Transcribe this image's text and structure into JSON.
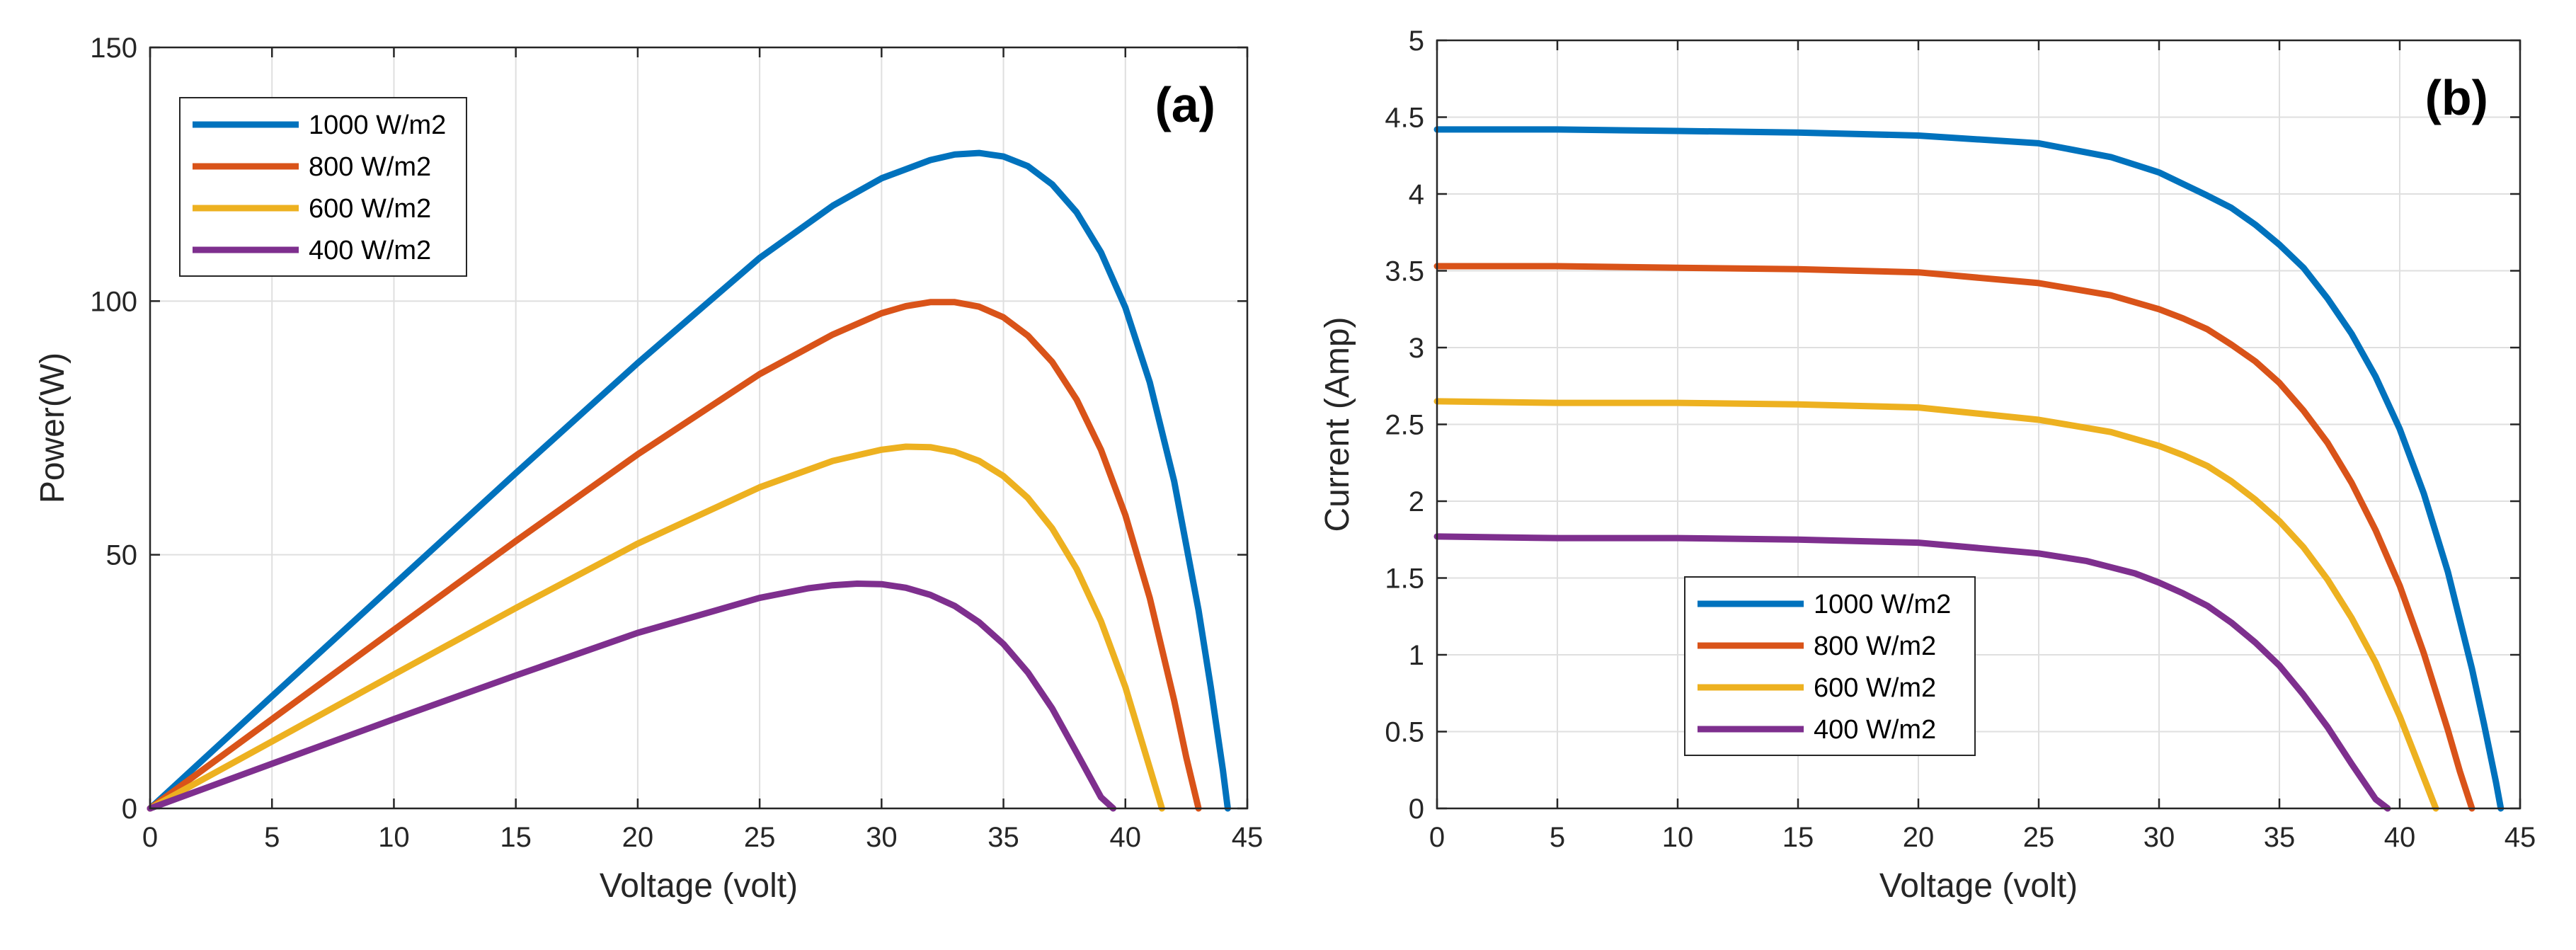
{
  "chart_data": [
    {
      "type": "line",
      "panel_label": "(a)",
      "xlabel": "Voltage (volt)",
      "ylabel": "Power(W)",
      "xlim": [
        0,
        45
      ],
      "ylim": [
        0,
        150
      ],
      "xticks": [
        0,
        5,
        10,
        15,
        20,
        25,
        30,
        35,
        40,
        45
      ],
      "yticks": [
        0,
        50,
        100,
        150
      ],
      "grid": true,
      "legend_position": "top-left",
      "series": [
        {
          "name": "1000 W/m2",
          "color": "#0072BD",
          "x": [
            0,
            5,
            10,
            15,
            20,
            25,
            28,
            30,
            32,
            33,
            34,
            35,
            36,
            37,
            38,
            39,
            40,
            41,
            42,
            43,
            43.5,
            44,
            44.2
          ],
          "y": [
            0,
            22.1,
            44.1,
            66.1,
            87.8,
            108.5,
            118.8,
            124.2,
            127.8,
            128.9,
            129.2,
            128.5,
            126.6,
            123.0,
            117.5,
            109.6,
            98.7,
            84.0,
            64.5,
            39.1,
            24.0,
            7.5,
            0
          ]
        },
        {
          "name": "800 W/m2",
          "color": "#D95319",
          "x": [
            0,
            5,
            10,
            15,
            20,
            25,
            28,
            30,
            31,
            32,
            33,
            34,
            35,
            36,
            37,
            38,
            39,
            40,
            41,
            42,
            42.5,
            43
          ],
          "y": [
            0,
            17.6,
            35.2,
            52.7,
            69.8,
            85.6,
            93.4,
            97.6,
            99.0,
            99.8,
            99.8,
            98.9,
            96.8,
            93.2,
            88.0,
            80.6,
            70.7,
            57.8,
            41.5,
            21.3,
            10.0,
            0
          ]
        },
        {
          "name": "600 W/m2",
          "color": "#EDB120",
          "x": [
            0,
            5,
            10,
            15,
            20,
            25,
            28,
            30,
            31,
            32,
            33,
            34,
            35,
            36,
            37,
            38,
            39,
            40,
            41,
            41.5
          ],
          "y": [
            0,
            13.2,
            26.4,
            39.5,
            52.2,
            63.3,
            68.5,
            70.7,
            71.3,
            71.2,
            70.3,
            68.5,
            65.5,
            61.2,
            55.2,
            47.2,
            36.9,
            23.9,
            8.0,
            0
          ]
        },
        {
          "name": "400 W/m2",
          "color": "#7E2F8E",
          "x": [
            0,
            5,
            10,
            15,
            20,
            25,
            27,
            28,
            29,
            30,
            31,
            32,
            33,
            34,
            35,
            36,
            37,
            38,
            39,
            39.5
          ],
          "y": [
            0,
            8.8,
            17.6,
            26.2,
            34.6,
            41.5,
            43.4,
            44.0,
            44.3,
            44.2,
            43.5,
            42.1,
            39.9,
            36.7,
            32.4,
            26.8,
            19.7,
            11.0,
            2.2,
            0
          ]
        }
      ]
    },
    {
      "type": "line",
      "panel_label": "(b)",
      "xlabel": "Voltage (volt)",
      "ylabel": "Current (Amp)",
      "xlim": [
        0,
        45
      ],
      "ylim": [
        0,
        5
      ],
      "xticks": [
        0,
        5,
        10,
        15,
        20,
        25,
        30,
        35,
        40,
        45
      ],
      "yticks": [
        0,
        0.5,
        1,
        1.5,
        2,
        2.5,
        3,
        3.5,
        4,
        4.5,
        5
      ],
      "grid": true,
      "legend_position": "bottom-left",
      "series": [
        {
          "name": "1000 W/m2",
          "color": "#0072BD",
          "x": [
            0,
            5,
            10,
            15,
            20,
            25,
            28,
            30,
            32,
            33,
            34,
            35,
            36,
            37,
            38,
            39,
            40,
            41,
            42,
            43,
            43.5,
            44,
            44.2
          ],
          "y": [
            4.42,
            4.42,
            4.41,
            4.4,
            4.38,
            4.33,
            4.24,
            4.14,
            3.99,
            3.91,
            3.8,
            3.67,
            3.52,
            3.32,
            3.09,
            2.81,
            2.47,
            2.05,
            1.54,
            0.91,
            0.55,
            0.17,
            0
          ]
        },
        {
          "name": "800 W/m2",
          "color": "#D95319",
          "x": [
            0,
            5,
            10,
            15,
            20,
            25,
            28,
            30,
            31,
            32,
            33,
            34,
            35,
            36,
            37,
            38,
            39,
            40,
            41,
            42,
            42.5,
            43
          ],
          "y": [
            3.53,
            3.53,
            3.52,
            3.51,
            3.49,
            3.42,
            3.34,
            3.25,
            3.19,
            3.12,
            3.02,
            2.91,
            2.77,
            2.59,
            2.38,
            2.12,
            1.81,
            1.45,
            1.01,
            0.51,
            0.24,
            0
          ]
        },
        {
          "name": "600 W/m2",
          "color": "#EDB120",
          "x": [
            0,
            5,
            10,
            15,
            20,
            25,
            28,
            30,
            31,
            32,
            33,
            34,
            35,
            36,
            37,
            38,
            39,
            40,
            41,
            41.5
          ],
          "y": [
            2.65,
            2.64,
            2.64,
            2.63,
            2.61,
            2.53,
            2.45,
            2.36,
            2.3,
            2.23,
            2.13,
            2.01,
            1.87,
            1.7,
            1.49,
            1.24,
            0.95,
            0.6,
            0.2,
            0
          ]
        },
        {
          "name": "400 W/m2",
          "color": "#7E2F8E",
          "x": [
            0,
            5,
            10,
            15,
            20,
            25,
            27,
            28,
            29,
            30,
            31,
            32,
            33,
            34,
            35,
            36,
            37,
            38,
            39,
            39.5
          ],
          "y": [
            1.77,
            1.76,
            1.76,
            1.75,
            1.73,
            1.66,
            1.61,
            1.57,
            1.53,
            1.47,
            1.4,
            1.32,
            1.21,
            1.08,
            0.93,
            0.74,
            0.53,
            0.29,
            0.06,
            0
          ]
        }
      ]
    }
  ]
}
